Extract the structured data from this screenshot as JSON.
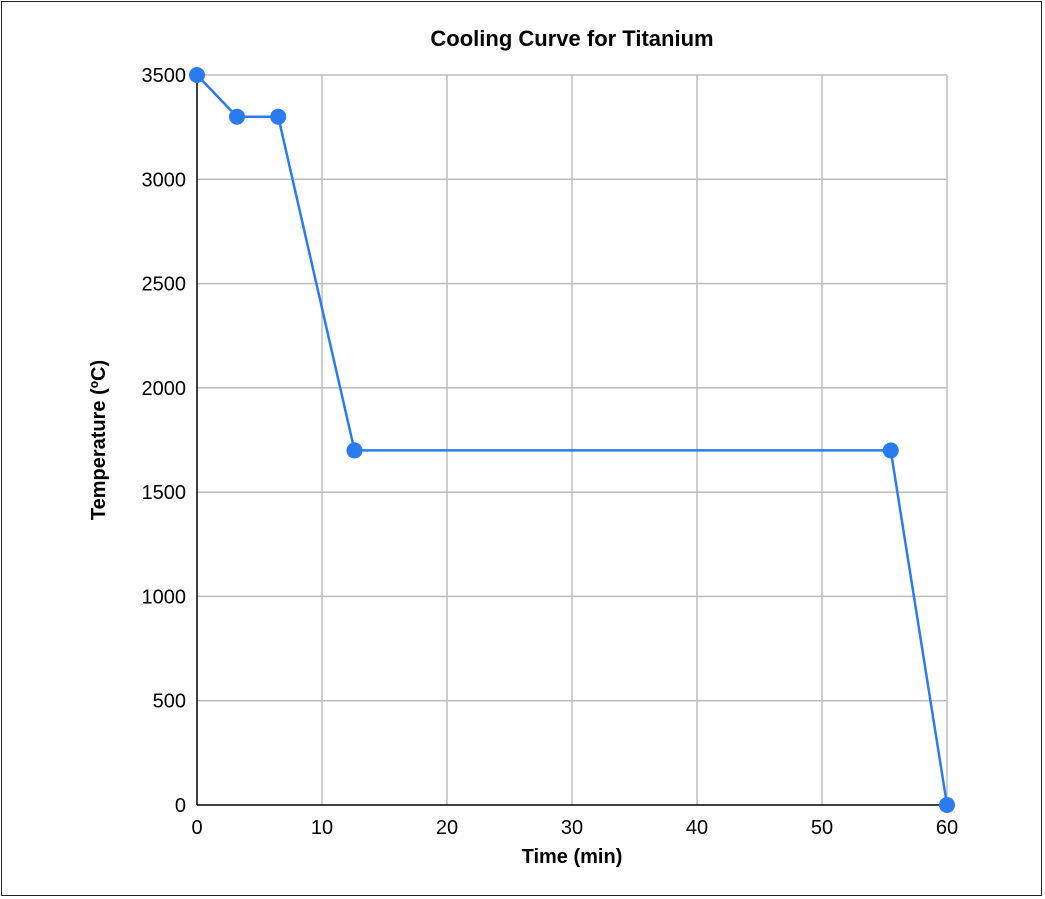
{
  "chart_data": {
    "type": "line",
    "title": "Cooling Curve for Titanium",
    "xlabel": "Time (min)",
    "ylabel": "Temperature (ºC)",
    "xlim": [
      0,
      60
    ],
    "ylim": [
      0,
      3500
    ],
    "xticks": [
      0,
      10,
      20,
      30,
      40,
      50,
      60
    ],
    "yticks": [
      0,
      500,
      1000,
      1500,
      2000,
      2500,
      3000,
      3500
    ],
    "grid": true,
    "legend": "none",
    "color": "#2b7bf0",
    "series": [
      {
        "x": [
          0,
          3.2,
          6.5,
          12.6,
          55.5,
          60
        ],
        "y": [
          3500,
          3300,
          3300,
          1700,
          1700,
          0
        ]
      }
    ]
  }
}
